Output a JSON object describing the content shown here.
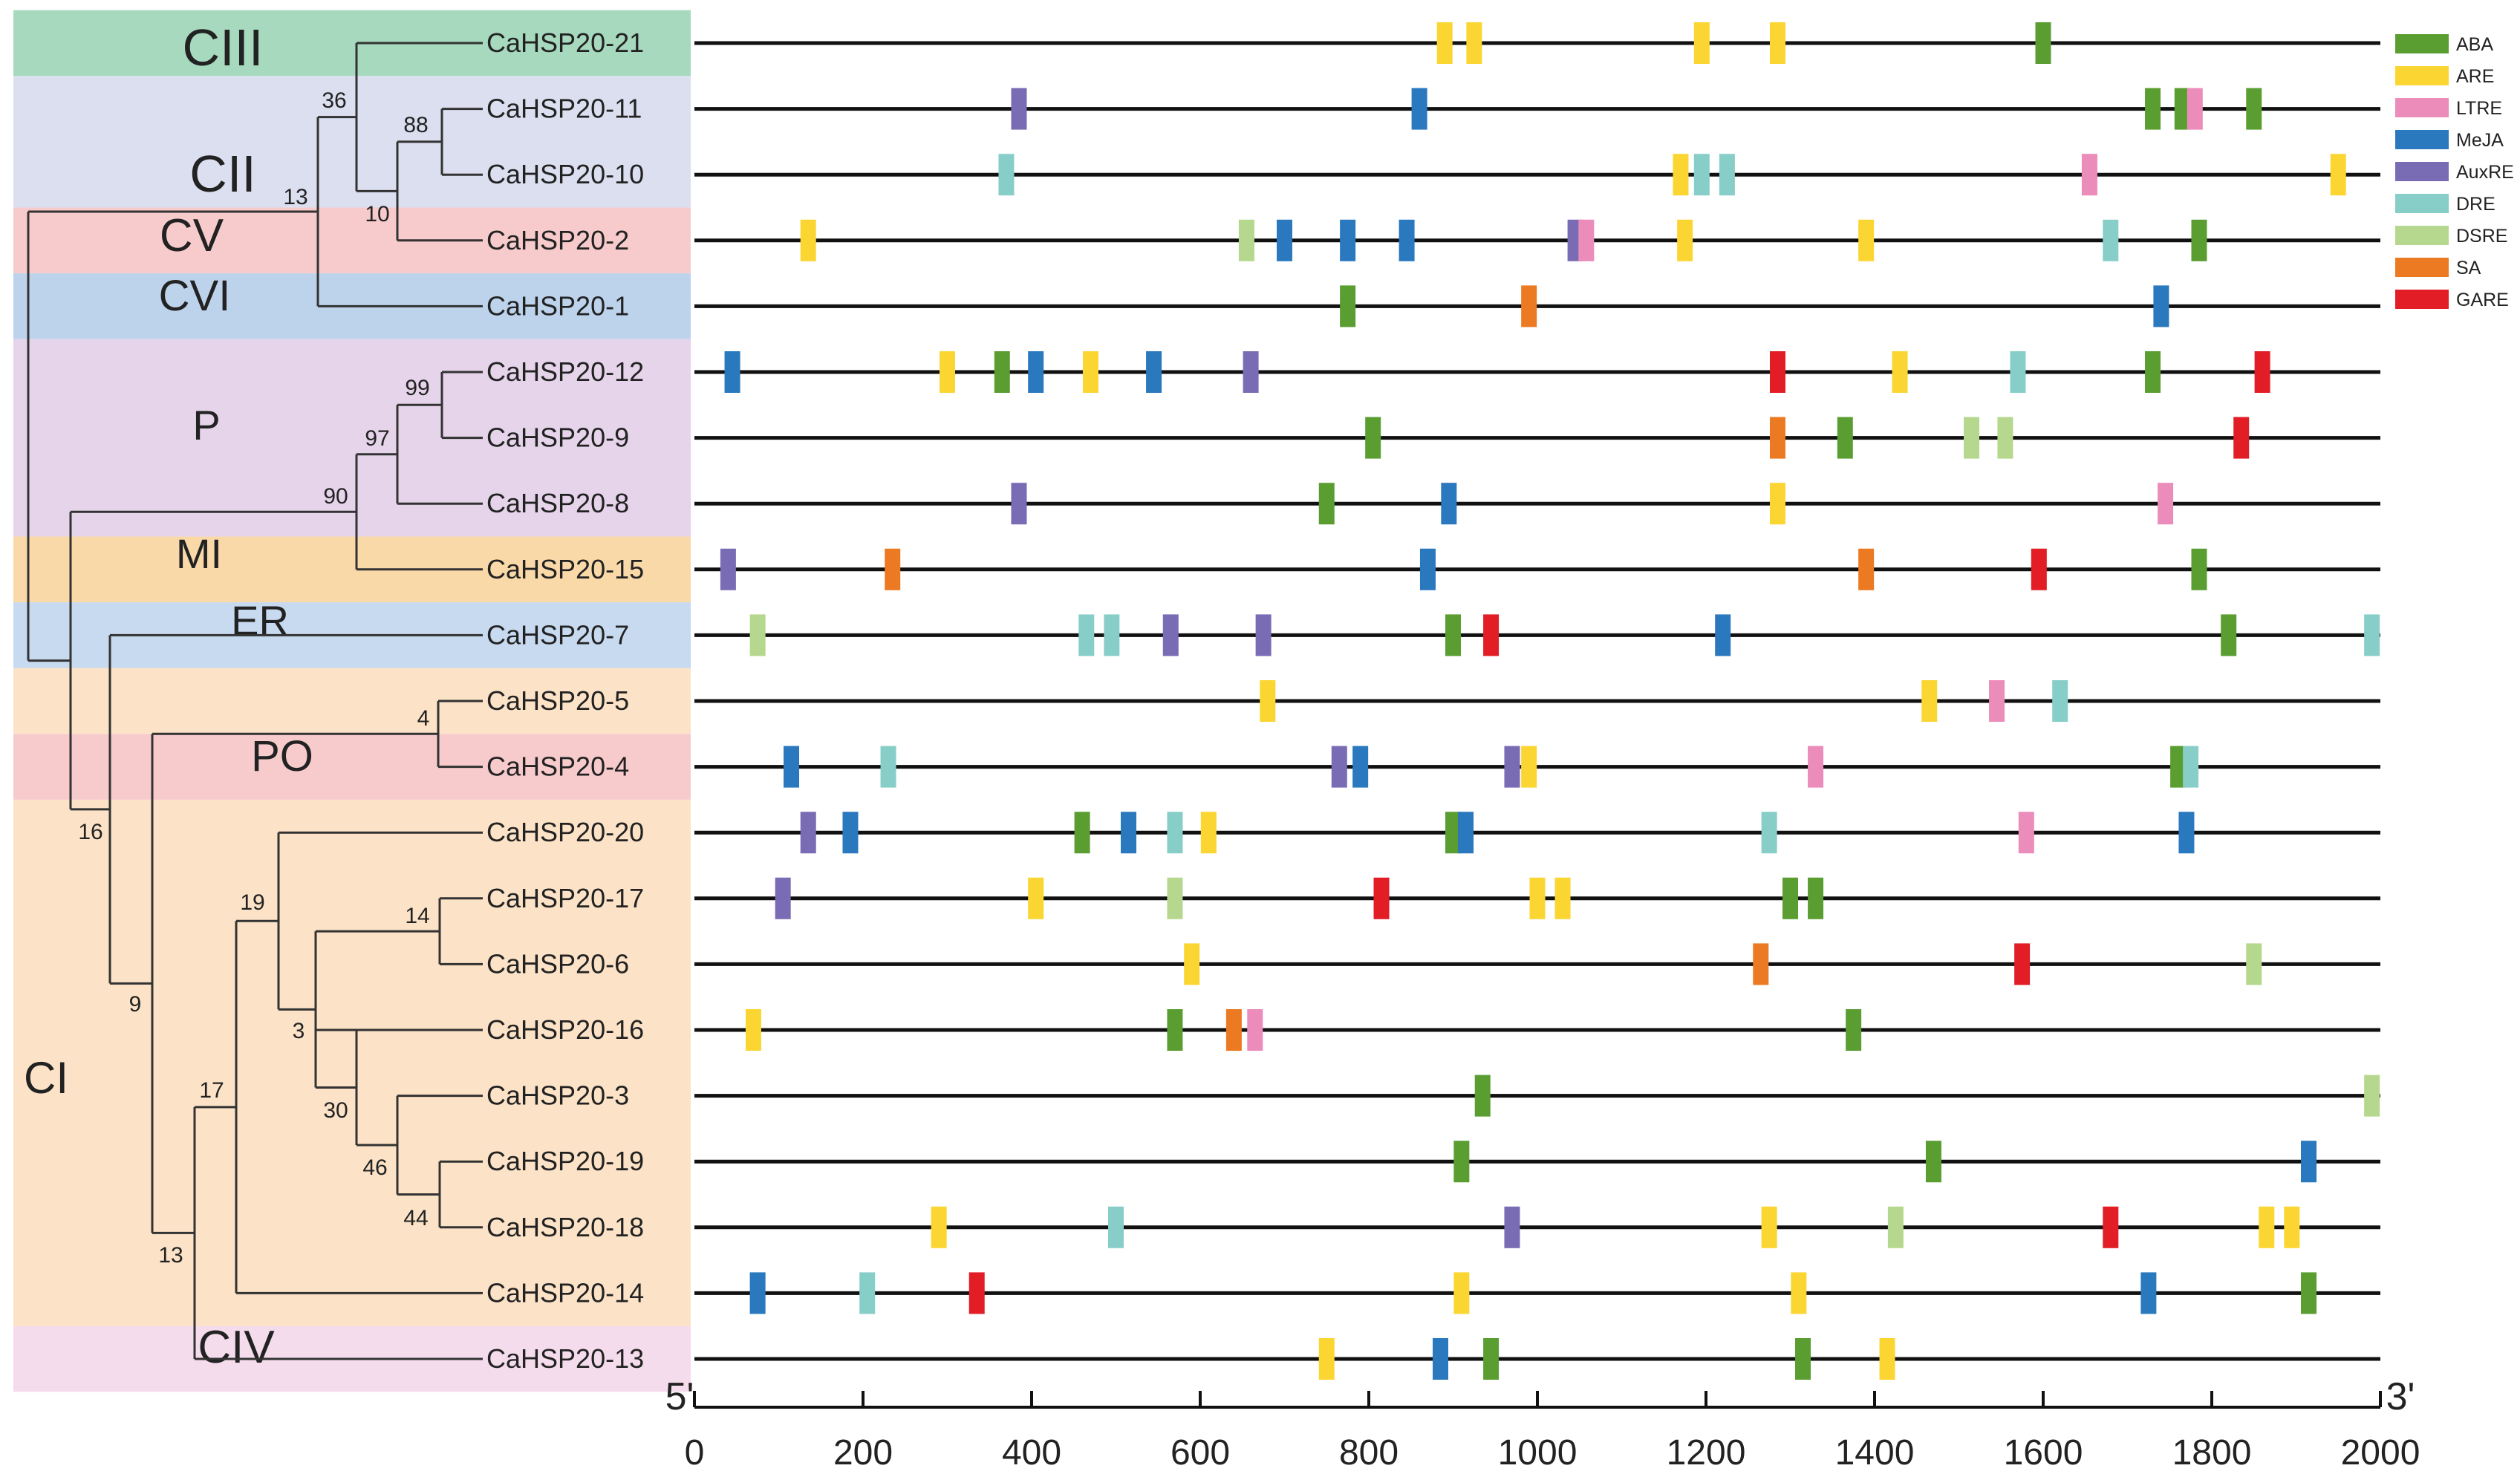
{
  "colors": {
    "ABA": "#5a9e32",
    "ARE": "#fbd633",
    "LTRE": "#ec8cbb",
    "MeJA": "#2a78be",
    "AuxRE": "#7a6cb4",
    "DRE": "#88cec8",
    "DSRE": "#b6d88e",
    "SA": "#ec7a22",
    "GARE": "#e21d26",
    "line": "#111111",
    "tree": "#333333"
  },
  "legend": [
    {
      "key": "ABA",
      "label": "ABA"
    },
    {
      "key": "ARE",
      "label": "ARE"
    },
    {
      "key": "LTRE",
      "label": "LTRE"
    },
    {
      "key": "MeJA",
      "label": "MeJA"
    },
    {
      "key": "AuxRE",
      "label": "AuxRE"
    },
    {
      "key": "DRE",
      "label": "DRE"
    },
    {
      "key": "DSRE",
      "label": "DSRE"
    },
    {
      "key": "SA",
      "label": "SA"
    },
    {
      "key": "GARE",
      "label": "GARE"
    }
  ],
  "axis": {
    "min": 0,
    "max": 2000,
    "ticks": [
      "0",
      "200",
      "400",
      "600",
      "800",
      "1000",
      "1200",
      "1400",
      "1600",
      "1800",
      "2000"
    ],
    "label_5prime": "5'",
    "label_3prime": "3'"
  },
  "groups": [
    {
      "label": "CIII",
      "color": "#a6d9be",
      "rows": [
        0,
        0
      ]
    },
    {
      "label": "CII",
      "color": "#dcdff0",
      "rows": [
        1,
        2
      ]
    },
    {
      "label": "CV",
      "color": "#f7cbcc",
      "rows": [
        3,
        3
      ]
    },
    {
      "label": "CVI",
      "color": "#bdd3ec",
      "rows": [
        4,
        4
      ]
    },
    {
      "label": "P",
      "color": "#e5d4ea",
      "rows": [
        5,
        7
      ]
    },
    {
      "label": "MI",
      "color": "#fad9a9",
      "rows": [
        8,
        8
      ]
    },
    {
      "label": "ER",
      "color": "#c8daf0",
      "rows": [
        9,
        9
      ]
    },
    {
      "label": "",
      "color": "#fce3c7",
      "rows": [
        10,
        10
      ]
    },
    {
      "label": "PO",
      "color": "#f7cbcc",
      "rows": [
        11,
        11
      ]
    },
    {
      "label": "CI",
      "color": "#fce3c7",
      "rows": [
        12,
        19
      ]
    },
    {
      "label": "CIV",
      "color": "#f5dcec",
      "rows": [
        20,
        20
      ]
    }
  ],
  "bootstrap": [
    "36",
    "88",
    "13",
    "10",
    "99",
    "97",
    "90",
    "4",
    "16",
    "19",
    "14",
    "9",
    "3",
    "17",
    "30",
    "46",
    "44",
    "13"
  ],
  "genes": [
    {
      "name": "CaHSP20-21",
      "elements": [
        [
          "ARE",
          890
        ],
        [
          "ARE",
          925
        ],
        [
          "ARE",
          1195
        ],
        [
          "ARE",
          1285
        ],
        [
          "ABA",
          1600
        ]
      ]
    },
    {
      "name": "CaHSP20-11",
      "elements": [
        [
          "AuxRE",
          385
        ],
        [
          "MeJA",
          860
        ],
        [
          "ABA",
          1730
        ],
        [
          "ABA",
          1765
        ],
        [
          "LTRE",
          1780
        ],
        [
          "ABA",
          1850
        ]
      ]
    },
    {
      "name": "CaHSP20-10",
      "elements": [
        [
          "DRE",
          370
        ],
        [
          "ARE",
          1170
        ],
        [
          "DRE",
          1195
        ],
        [
          "DRE",
          1225
        ],
        [
          "LTRE",
          1655
        ],
        [
          "ARE",
          1950
        ]
      ]
    },
    {
      "name": "CaHSP20-2",
      "elements": [
        [
          "ARE",
          135
        ],
        [
          "DSRE",
          655
        ],
        [
          "MeJA",
          700
        ],
        [
          "MeJA",
          775
        ],
        [
          "MeJA",
          845
        ],
        [
          "AuxRE",
          1045
        ],
        [
          "LTRE",
          1058
        ],
        [
          "ARE",
          1175
        ],
        [
          "ARE",
          1390
        ],
        [
          "DRE",
          1680
        ],
        [
          "ABA",
          1785
        ]
      ]
    },
    {
      "name": "CaHSP20-1",
      "elements": [
        [
          "ABA",
          775
        ],
        [
          "SA",
          990
        ],
        [
          "MeJA",
          1740
        ]
      ]
    },
    {
      "name": "CaHSP20-12",
      "elements": [
        [
          "MeJA",
          45
        ],
        [
          "ARE",
          300
        ],
        [
          "ABA",
          365
        ],
        [
          "MeJA",
          405
        ],
        [
          "ARE",
          470
        ],
        [
          "MeJA",
          545
        ],
        [
          "AuxRE",
          660
        ],
        [
          "GARE",
          1285
        ],
        [
          "ARE",
          1430
        ],
        [
          "DRE",
          1570
        ],
        [
          "ABA",
          1730
        ],
        [
          "GARE",
          1860
        ]
      ]
    },
    {
      "name": "CaHSP20-9",
      "elements": [
        [
          "ABA",
          805
        ],
        [
          "SA",
          1285
        ],
        [
          "ABA",
          1365
        ],
        [
          "DSRE",
          1515
        ],
        [
          "DSRE",
          1555
        ],
        [
          "GARE",
          1835
        ]
      ]
    },
    {
      "name": "CaHSP20-8",
      "elements": [
        [
          "AuxRE",
          385
        ],
        [
          "ABA",
          750
        ],
        [
          "MeJA",
          895
        ],
        [
          "ARE",
          1285
        ],
        [
          "LTRE",
          1745
        ]
      ]
    },
    {
      "name": "CaHSP20-15",
      "elements": [
        [
          "AuxRE",
          40
        ],
        [
          "SA",
          235
        ],
        [
          "MeJA",
          870
        ],
        [
          "SA",
          1390
        ],
        [
          "GARE",
          1595
        ],
        [
          "ABA",
          1785
        ]
      ]
    },
    {
      "name": "CaHSP20-7",
      "elements": [
        [
          "DSRE",
          75
        ],
        [
          "DRE",
          465
        ],
        [
          "DRE",
          495
        ],
        [
          "AuxRE",
          565
        ],
        [
          "AuxRE",
          675
        ],
        [
          "ABA",
          900
        ],
        [
          "GARE",
          945
        ],
        [
          "MeJA",
          1220
        ],
        [
          "ABA",
          1820
        ],
        [
          "DRE",
          1990
        ]
      ]
    },
    {
      "name": "CaHSP20-5",
      "elements": [
        [
          "ARE",
          680
        ],
        [
          "ARE",
          1465
        ],
        [
          "LTRE",
          1545
        ],
        [
          "DRE",
          1620
        ]
      ]
    },
    {
      "name": "CaHSP20-4",
      "elements": [
        [
          "MeJA",
          115
        ],
        [
          "DRE",
          230
        ],
        [
          "AuxRE",
          765
        ],
        [
          "MeJA",
          790
        ],
        [
          "AuxRE",
          970
        ],
        [
          "ARE",
          990
        ],
        [
          "LTRE",
          1330
        ],
        [
          "ABA",
          1760
        ],
        [
          "DRE",
          1775
        ]
      ]
    },
    {
      "name": "CaHSP20-20",
      "elements": [
        [
          "AuxRE",
          135
        ],
        [
          "MeJA",
          185
        ],
        [
          "ABA",
          460
        ],
        [
          "MeJA",
          515
        ],
        [
          "DRE",
          570
        ],
        [
          "ARE",
          610
        ],
        [
          "ABA",
          900
        ],
        [
          "MeJA",
          915
        ],
        [
          "DRE",
          1275
        ],
        [
          "LTRE",
          1580
        ],
        [
          "MeJA",
          1770
        ]
      ]
    },
    {
      "name": "CaHSP20-17",
      "elements": [
        [
          "AuxRE",
          105
        ],
        [
          "ARE",
          405
        ],
        [
          "DSRE",
          570
        ],
        [
          "GARE",
          815
        ],
        [
          "ARE",
          1000
        ],
        [
          "ARE",
          1030
        ],
        [
          "ABA",
          1300
        ],
        [
          "ABA",
          1330
        ]
      ]
    },
    {
      "name": "CaHSP20-6",
      "elements": [
        [
          "ARE",
          590
        ],
        [
          "SA",
          1265
        ],
        [
          "GARE",
          1575
        ],
        [
          "DSRE",
          1850
        ]
      ]
    },
    {
      "name": "CaHSP20-16",
      "elements": [
        [
          "ARE",
          70
        ],
        [
          "ABA",
          570
        ],
        [
          "SA",
          640
        ],
        [
          "LTRE",
          665
        ],
        [
          "ABA",
          1375
        ]
      ]
    },
    {
      "name": "CaHSP20-3",
      "elements": [
        [
          "ABA",
          935
        ],
        [
          "DSRE",
          1990
        ]
      ]
    },
    {
      "name": "CaHSP20-19",
      "elements": [
        [
          "ABA",
          910
        ],
        [
          "ABA",
          1470
        ],
        [
          "MeJA",
          1915
        ]
      ]
    },
    {
      "name": "CaHSP20-18",
      "elements": [
        [
          "ARE",
          290
        ],
        [
          "DRE",
          500
        ],
        [
          "AuxRE",
          970
        ],
        [
          "ARE",
          1275
        ],
        [
          "DSRE",
          1425
        ],
        [
          "GARE",
          1680
        ],
        [
          "ARE",
          1865
        ],
        [
          "ARE",
          1895
        ]
      ]
    },
    {
      "name": "CaHSP20-14",
      "elements": [
        [
          "MeJA",
          75
        ],
        [
          "DRE",
          205
        ],
        [
          "GARE",
          335
        ],
        [
          "ARE",
          910
        ],
        [
          "ARE",
          1310
        ],
        [
          "MeJA",
          1725
        ],
        [
          "ABA",
          1915
        ]
      ]
    },
    {
      "name": "CaHSP20-13",
      "elements": [
        [
          "ARE",
          750
        ],
        [
          "MeJA",
          885
        ],
        [
          "ABA",
          945
        ],
        [
          "ABA",
          1315
        ],
        [
          "ARE",
          1415
        ]
      ]
    }
  ]
}
